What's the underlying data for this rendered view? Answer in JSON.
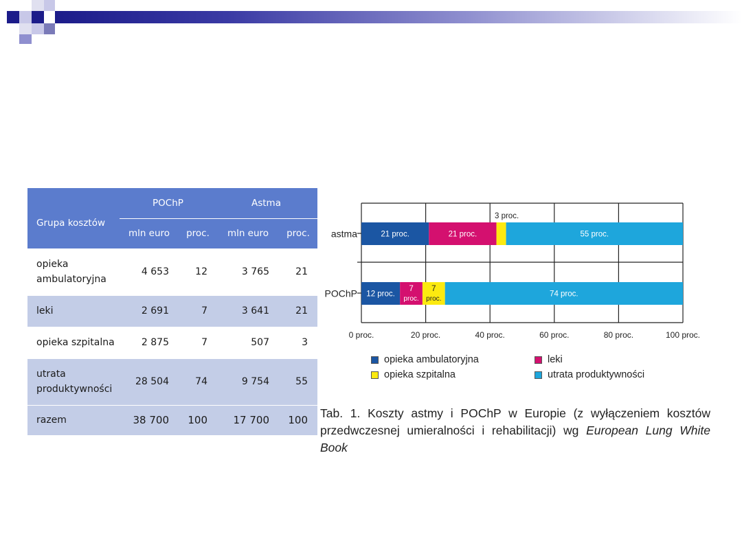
{
  "table": {
    "header": {
      "group": "Grupa kosztów",
      "pochp": "POChP",
      "astma": "Astma",
      "mln": "mln euro",
      "proc": "proc."
    },
    "rows": [
      {
        "label": "opieka ambulatoryjna",
        "pochp_mln": "4 653",
        "pochp_proc": "12",
        "astma_mln": "3 765",
        "astma_proc": "21"
      },
      {
        "label": "leki",
        "pochp_mln": "2 691",
        "pochp_proc": "7",
        "astma_mln": "3 641",
        "astma_proc": "21"
      },
      {
        "label": "opieka szpitalna",
        "pochp_mln": "2 875",
        "pochp_proc": "7",
        "astma_mln": "507",
        "astma_proc": "3"
      },
      {
        "label": "utrata produktywności",
        "pochp_mln": "28 504",
        "pochp_proc": "74",
        "astma_mln": "9 754",
        "astma_proc": "55"
      },
      {
        "label": "razem",
        "pochp_mln": "38 700",
        "pochp_proc": "100",
        "astma_mln": "17 700",
        "astma_proc": "100"
      }
    ]
  },
  "chart_data": {
    "type": "bar",
    "orientation": "horizontal",
    "stacked": true,
    "categories": [
      "astma",
      "POChP"
    ],
    "series": [
      {
        "name": "opieka ambulatoryjna",
        "color": "#1b56a3",
        "values": [
          21,
          12
        ],
        "labels": [
          "21 proc.",
          "12 proc."
        ]
      },
      {
        "name": "leki",
        "color": "#d4106f",
        "values": [
          21,
          7
        ],
        "labels": [
          "21 proc.",
          "7 proc."
        ]
      },
      {
        "name": "opieka szpitalna",
        "color": "#fcea10",
        "values": [
          3,
          7
        ],
        "labels": [
          "3 proc.",
          "7 proc."
        ]
      },
      {
        "name": "utrata produktywności",
        "color": "#1ea6dc",
        "values": [
          55,
          74
        ],
        "labels": [
          "55 proc.",
          "74 proc."
        ]
      }
    ],
    "xlim": [
      0,
      100
    ],
    "xticks": [
      "0 proc.",
      "20 proc.",
      "40 proc.",
      "60 proc.",
      "80 proc.",
      "100 proc."
    ],
    "grid": true,
    "legend_position": "bottom"
  },
  "caption": {
    "text": "Tab. 1. Koszty astmy i POChP w Europie (z wyłączeniem kosztów przedwczesnej umieralności i rehabilitacji) wg ",
    "italic": "European Lung White Book"
  },
  "colors": {
    "header_blue": "#5b7ccd",
    "row_band": "#c3cde7",
    "title_dark": "#1c1c8a"
  }
}
